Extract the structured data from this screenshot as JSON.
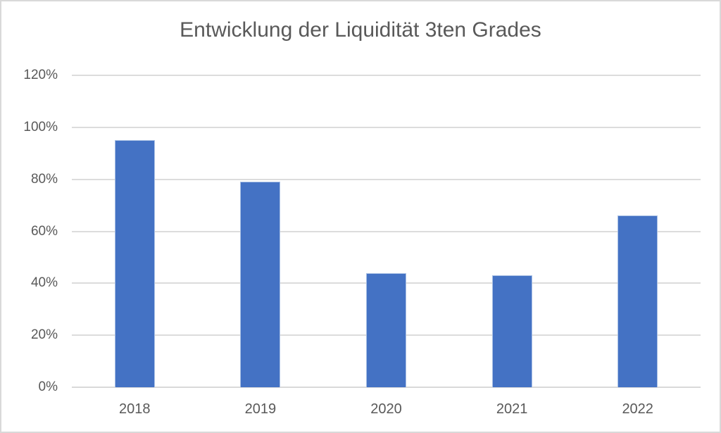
{
  "chart_data": {
    "type": "bar",
    "title": "Entwicklung der Liquidität 3ten Grades",
    "categories": [
      "2018",
      "2019",
      "2020",
      "2021",
      "2022"
    ],
    "values": [
      95,
      79,
      44,
      43,
      66
    ],
    "unit": "%",
    "xlabel": "",
    "ylabel": "",
    "ylim": [
      0,
      120
    ],
    "ytick_step": 20,
    "ytick_labels": [
      "0%",
      "20%",
      "40%",
      "60%",
      "80%",
      "100%",
      "120%"
    ],
    "grid": true,
    "legend_position": "none",
    "colors": {
      "bar": "#4472C4",
      "bar_edge": "#A9C0E4",
      "gridline": "#DCDCDC",
      "axis_line": "#D9D9D9",
      "text": "#595959",
      "background": "#FFFFFF",
      "chart_border": "#D9D9D9"
    }
  }
}
